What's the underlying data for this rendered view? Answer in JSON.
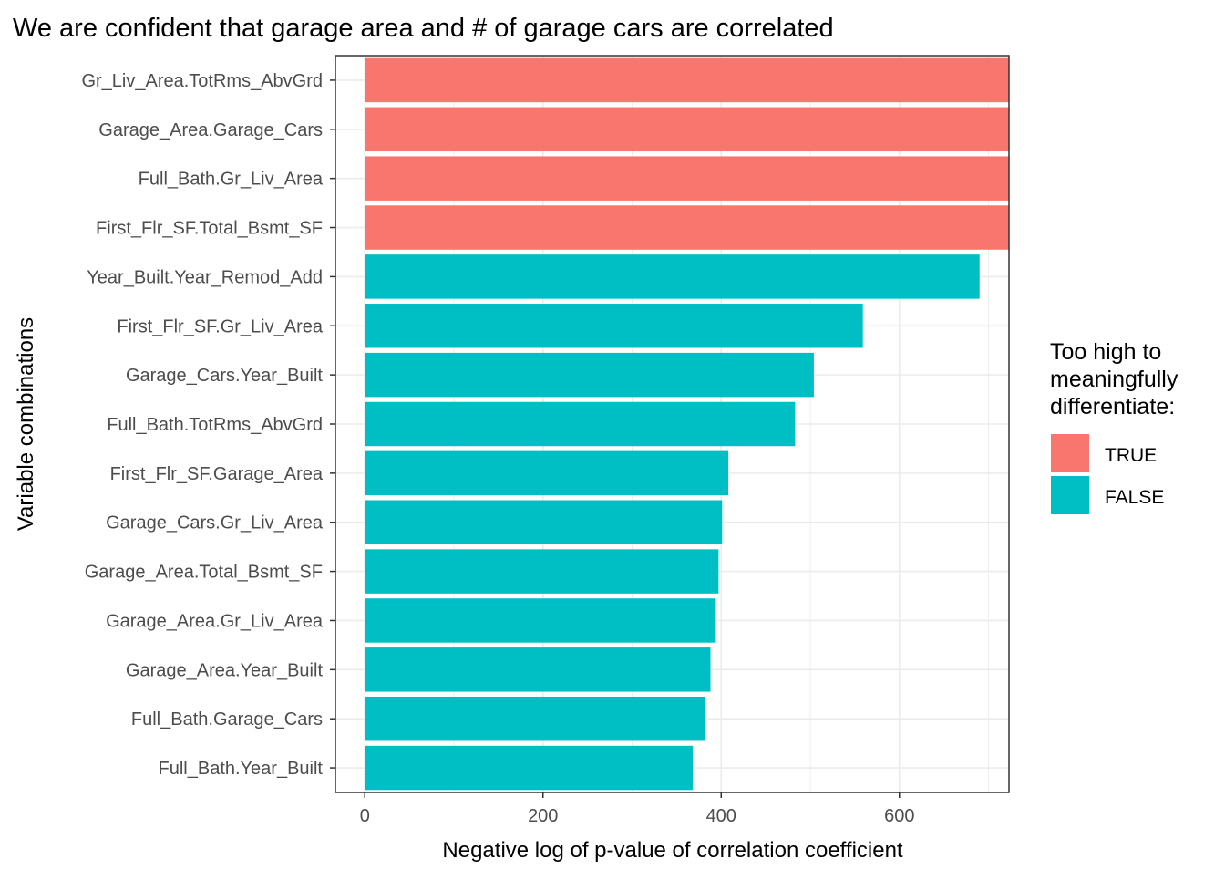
{
  "chart_data": {
    "type": "bar",
    "orientation": "horizontal",
    "title": "We are confident that garage area and # of garage cars are correlated",
    "xlabel": "Negative log of p-value of correlation coefficient",
    "ylabel": "Variable combinations",
    "xlim": [
      -33,
      723
    ],
    "xticks": [
      0,
      200,
      400,
      600
    ],
    "grid": true,
    "legend": {
      "title_lines": [
        "Too high to",
        "meaningfully",
        "differentiate:"
      ],
      "position": "right",
      "entries": [
        {
          "label": "TRUE",
          "color": "#F8766D"
        },
        {
          "label": "FALSE",
          "color": "#00BFC4"
        }
      ]
    },
    "categories": [
      "Gr_Liv_Area.TotRms_AbvGrd",
      "Garage_Area.Garage_Cars",
      "Full_Bath.Gr_Liv_Area",
      "First_Flr_SF.Total_Bsmt_SF",
      "Year_Built.Year_Remod_Add",
      "First_Flr_SF.Gr_Liv_Area",
      "Garage_Cars.Year_Built",
      "Full_Bath.TotRms_AbvGrd",
      "First_Flr_SF.Garage_Area",
      "Garage_Cars.Gr_Liv_Area",
      "Garage_Area.Total_Bsmt_SF",
      "Garage_Area.Gr_Liv_Area",
      "Garage_Area.Year_Built",
      "Full_Bath.Garage_Cars",
      "Full_Bath.Year_Built"
    ],
    "values": [
      723,
      723,
      723,
      723,
      690,
      559,
      504,
      483,
      408,
      401,
      397,
      394,
      388,
      382,
      368
    ],
    "too_high": [
      true,
      true,
      true,
      true,
      false,
      false,
      false,
      false,
      false,
      false,
      false,
      false,
      false,
      false,
      false
    ]
  }
}
